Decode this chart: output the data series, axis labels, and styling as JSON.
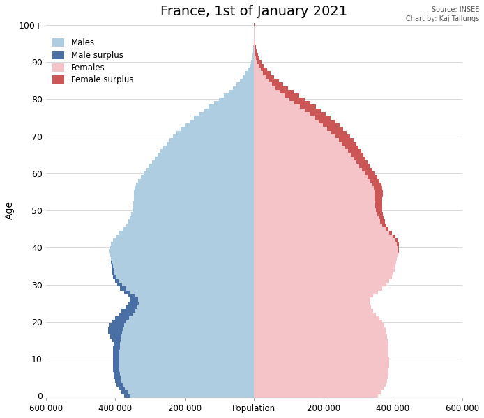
{
  "title": "France, 1st of January 2021",
  "source_text": "Source: INSEE\nChart by: Kaj Tallungs",
  "xlabel": "Population",
  "ylabel": "Age",
  "xlim": 600000,
  "male_color": "#aecde1",
  "male_surplus_color": "#4a6fa5",
  "female_color": "#f5c4c8",
  "female_surplus_color": "#cc5555",
  "bg_color": "#ffffff",
  "axes_bg": "#ffffff",
  "ages": [
    0,
    1,
    2,
    3,
    4,
    5,
    6,
    7,
    8,
    9,
    10,
    11,
    12,
    13,
    14,
    15,
    16,
    17,
    18,
    19,
    20,
    21,
    22,
    23,
    24,
    25,
    26,
    27,
    28,
    29,
    30,
    31,
    32,
    33,
    34,
    35,
    36,
    37,
    38,
    39,
    40,
    41,
    42,
    43,
    44,
    45,
    46,
    47,
    48,
    49,
    50,
    51,
    52,
    53,
    54,
    55,
    56,
    57,
    58,
    59,
    60,
    61,
    62,
    63,
    64,
    65,
    66,
    67,
    68,
    69,
    70,
    71,
    72,
    73,
    74,
    75,
    76,
    77,
    78,
    79,
    80,
    81,
    82,
    83,
    84,
    85,
    86,
    87,
    88,
    89,
    90,
    91,
    92,
    93,
    94,
    95,
    96,
    97,
    98,
    99,
    100
  ],
  "males": [
    374000,
    383000,
    390000,
    396000,
    400000,
    403000,
    405000,
    406000,
    407000,
    407000,
    407000,
    406000,
    406000,
    406000,
    405000,
    408000,
    415000,
    421000,
    420000,
    416000,
    408000,
    400000,
    391000,
    382000,
    371000,
    362000,
    358000,
    362000,
    374000,
    386000,
    395000,
    401000,
    406000,
    409000,
    410000,
    411000,
    412000,
    413000,
    415000,
    416000,
    415000,
    412000,
    407000,
    399000,
    389000,
    378000,
    369000,
    363000,
    358000,
    354000,
    351000,
    349000,
    348000,
    347000,
    347000,
    346000,
    344000,
    340000,
    334000,
    327000,
    319000,
    311000,
    302000,
    294000,
    286000,
    278000,
    270000,
    262000,
    253000,
    244000,
    234000,
    223000,
    211000,
    199000,
    186000,
    173000,
    159000,
    145000,
    131000,
    116000,
    101000,
    87000,
    74000,
    62000,
    51000,
    42000,
    33000,
    26000,
    19000,
    13000,
    9000,
    6000,
    4000,
    3000,
    2000,
    1000,
    800,
    500,
    300,
    150,
    80
  ],
  "females": [
    356000,
    365000,
    372000,
    378000,
    382000,
    385000,
    387000,
    388000,
    389000,
    389000,
    389000,
    388000,
    388000,
    387000,
    386000,
    385000,
    383000,
    381000,
    378000,
    374000,
    368000,
    360000,
    351000,
    343000,
    337000,
    333000,
    334000,
    343000,
    356000,
    369000,
    381000,
    390000,
    397000,
    402000,
    405000,
    407000,
    409000,
    412000,
    415000,
    417000,
    418000,
    417000,
    413000,
    406000,
    397000,
    388000,
    381000,
    376000,
    373000,
    370000,
    369000,
    368000,
    368000,
    369000,
    370000,
    370000,
    369000,
    366000,
    360000,
    354000,
    347000,
    340000,
    333000,
    326000,
    320000,
    314000,
    308000,
    301000,
    294000,
    286000,
    277000,
    267000,
    257000,
    246000,
    234000,
    221000,
    207000,
    192000,
    177000,
    161000,
    145000,
    129000,
    113000,
    98000,
    84000,
    71000,
    58000,
    47000,
    37000,
    28000,
    21000,
    15000,
    11000,
    8000,
    5000,
    3000,
    2000,
    1200,
    700,
    400,
    200
  ]
}
